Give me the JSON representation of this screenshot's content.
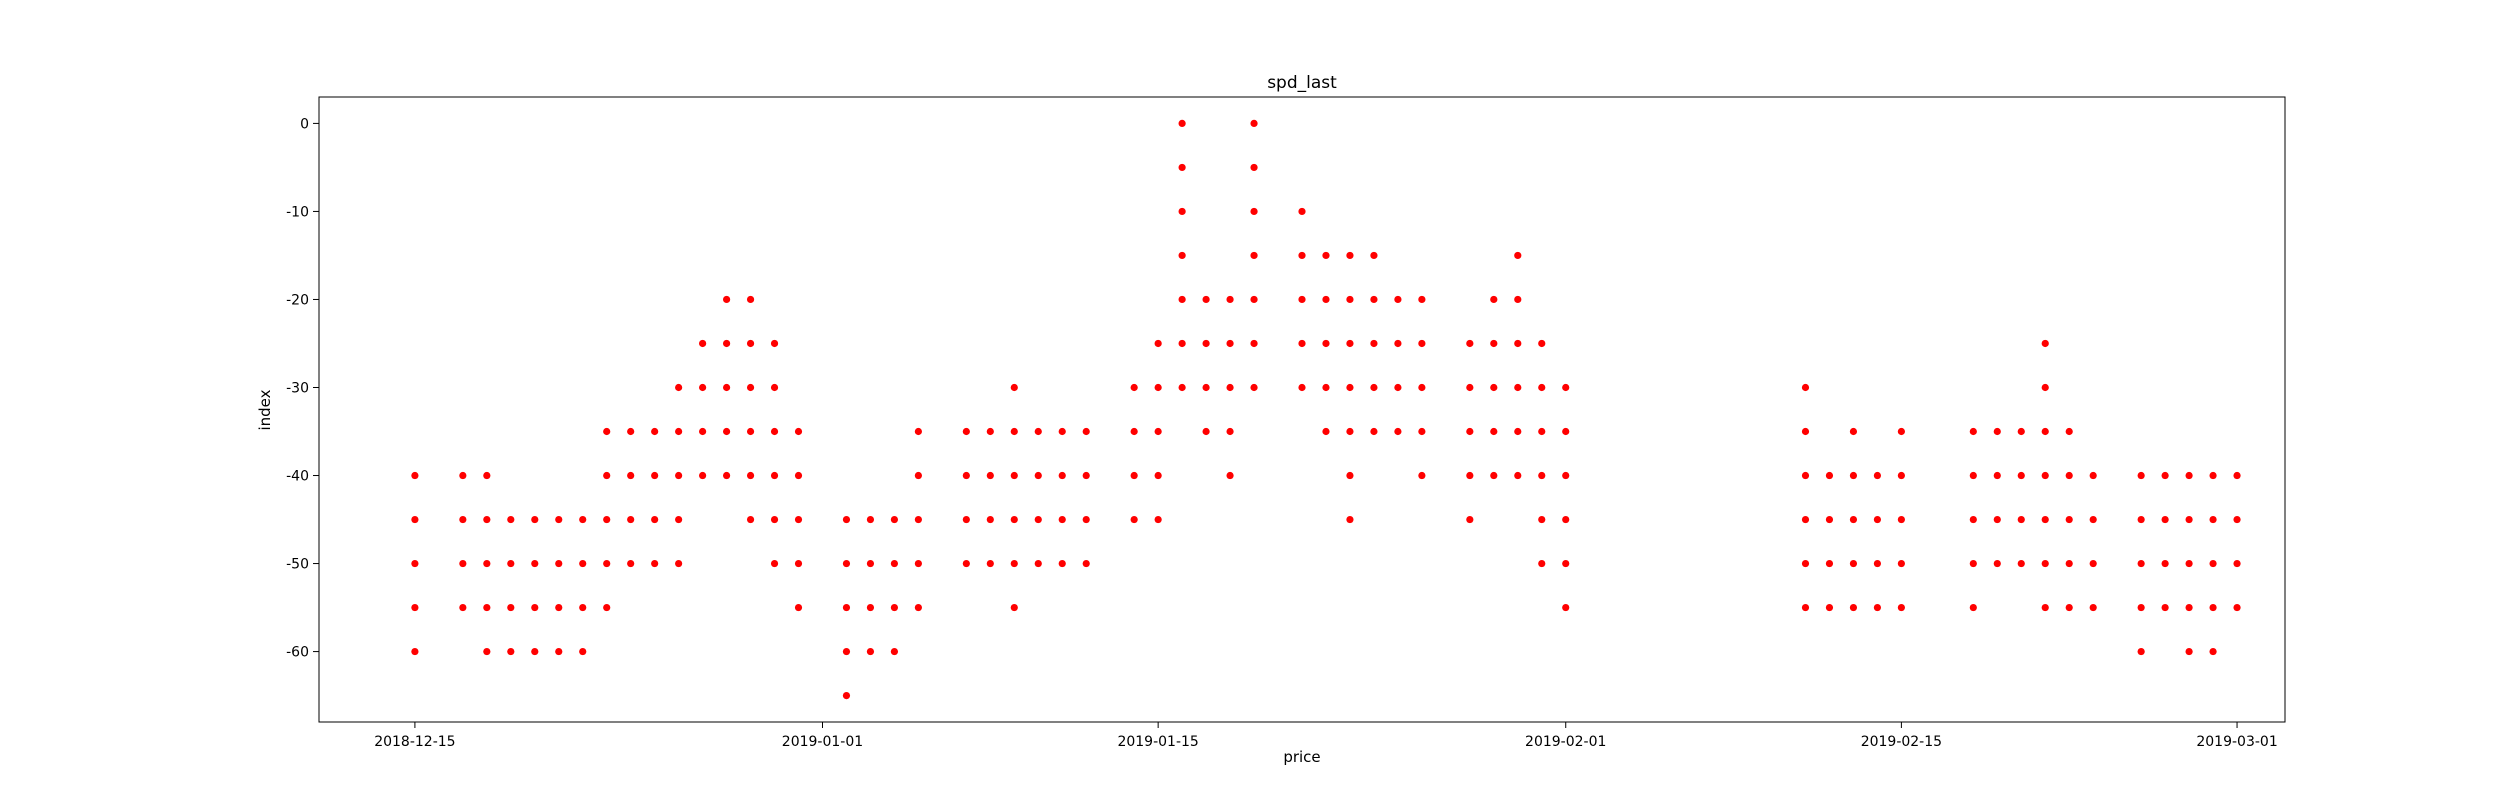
{
  "chart_data": {
    "type": "scatter",
    "title": "spd_last",
    "xlabel": "price",
    "ylabel": "index",
    "x_axis_kind": "date",
    "xlim": [
      "2018-12-11",
      "2019-03-03"
    ],
    "ylim": [
      -68,
      3
    ],
    "xticks": [
      "2018-12-15",
      "2019-01-01",
      "2019-01-15",
      "2019-02-01",
      "2019-02-15",
      "2019-03-01"
    ],
    "yticks": [
      0,
      -10,
      -20,
      -30,
      -40,
      -50,
      -60
    ],
    "marker_color": "#ff0000",
    "grid": false,
    "legend": "none",
    "points": [
      [
        "2018-12-15",
        -40
      ],
      [
        "2018-12-15",
        -45
      ],
      [
        "2018-12-15",
        -50
      ],
      [
        "2018-12-15",
        -55
      ],
      [
        "2018-12-15",
        -60
      ],
      [
        "2018-12-17",
        -40
      ],
      [
        "2018-12-17",
        -45
      ],
      [
        "2018-12-17",
        -50
      ],
      [
        "2018-12-17",
        -55
      ],
      [
        "2018-12-18",
        -40
      ],
      [
        "2018-12-18",
        -45
      ],
      [
        "2018-12-18",
        -50
      ],
      [
        "2018-12-18",
        -55
      ],
      [
        "2018-12-18",
        -60
      ],
      [
        "2018-12-19",
        -45
      ],
      [
        "2018-12-19",
        -50
      ],
      [
        "2018-12-19",
        -55
      ],
      [
        "2018-12-19",
        -60
      ],
      [
        "2018-12-20",
        -45
      ],
      [
        "2018-12-20",
        -50
      ],
      [
        "2018-12-20",
        -55
      ],
      [
        "2018-12-20",
        -60
      ],
      [
        "2018-12-21",
        -45
      ],
      [
        "2018-12-21",
        -50
      ],
      [
        "2018-12-21",
        -55
      ],
      [
        "2018-12-21",
        -60
      ],
      [
        "2018-12-22",
        -45
      ],
      [
        "2018-12-22",
        -50
      ],
      [
        "2018-12-22",
        -55
      ],
      [
        "2018-12-22",
        -60
      ],
      [
        "2018-12-23",
        -35
      ],
      [
        "2018-12-23",
        -40
      ],
      [
        "2018-12-23",
        -45
      ],
      [
        "2018-12-23",
        -50
      ],
      [
        "2018-12-23",
        -55
      ],
      [
        "2018-12-24",
        -35
      ],
      [
        "2018-12-24",
        -40
      ],
      [
        "2018-12-24",
        -45
      ],
      [
        "2018-12-24",
        -50
      ],
      [
        "2018-12-25",
        -35
      ],
      [
        "2018-12-25",
        -40
      ],
      [
        "2018-12-25",
        -45
      ],
      [
        "2018-12-25",
        -50
      ],
      [
        "2018-12-26",
        -30
      ],
      [
        "2018-12-26",
        -35
      ],
      [
        "2018-12-26",
        -40
      ],
      [
        "2018-12-26",
        -45
      ],
      [
        "2018-12-26",
        -50
      ],
      [
        "2018-12-27",
        -25
      ],
      [
        "2018-12-27",
        -30
      ],
      [
        "2018-12-27",
        -35
      ],
      [
        "2018-12-27",
        -40
      ],
      [
        "2018-12-28",
        -20
      ],
      [
        "2018-12-28",
        -25
      ],
      [
        "2018-12-28",
        -30
      ],
      [
        "2018-12-28",
        -35
      ],
      [
        "2018-12-28",
        -40
      ],
      [
        "2018-12-29",
        -20
      ],
      [
        "2018-12-29",
        -25
      ],
      [
        "2018-12-29",
        -30
      ],
      [
        "2018-12-29",
        -35
      ],
      [
        "2018-12-29",
        -40
      ],
      [
        "2018-12-29",
        -45
      ],
      [
        "2018-12-30",
        -25
      ],
      [
        "2018-12-30",
        -30
      ],
      [
        "2018-12-30",
        -35
      ],
      [
        "2018-12-30",
        -40
      ],
      [
        "2018-12-30",
        -45
      ],
      [
        "2018-12-30",
        -50
      ],
      [
        "2018-12-31",
        -35
      ],
      [
        "2018-12-31",
        -40
      ],
      [
        "2018-12-31",
        -45
      ],
      [
        "2018-12-31",
        -50
      ],
      [
        "2018-12-31",
        -55
      ],
      [
        "2019-01-02",
        -45
      ],
      [
        "2019-01-02",
        -50
      ],
      [
        "2019-01-02",
        -55
      ],
      [
        "2019-01-02",
        -60
      ],
      [
        "2019-01-02",
        -65
      ],
      [
        "2019-01-03",
        -45
      ],
      [
        "2019-01-03",
        -50
      ],
      [
        "2019-01-03",
        -55
      ],
      [
        "2019-01-03",
        -60
      ],
      [
        "2019-01-04",
        -45
      ],
      [
        "2019-01-04",
        -50
      ],
      [
        "2019-01-04",
        -55
      ],
      [
        "2019-01-04",
        -60
      ],
      [
        "2019-01-05",
        -35
      ],
      [
        "2019-01-05",
        -40
      ],
      [
        "2019-01-05",
        -45
      ],
      [
        "2019-01-05",
        -50
      ],
      [
        "2019-01-05",
        -55
      ],
      [
        "2019-01-07",
        -35
      ],
      [
        "2019-01-07",
        -40
      ],
      [
        "2019-01-07",
        -45
      ],
      [
        "2019-01-07",
        -50
      ],
      [
        "2019-01-08",
        -35
      ],
      [
        "2019-01-08",
        -40
      ],
      [
        "2019-01-08",
        -45
      ],
      [
        "2019-01-08",
        -50
      ],
      [
        "2019-01-09",
        -30
      ],
      [
        "2019-01-09",
        -35
      ],
      [
        "2019-01-09",
        -40
      ],
      [
        "2019-01-09",
        -45
      ],
      [
        "2019-01-09",
        -50
      ],
      [
        "2019-01-09",
        -55
      ],
      [
        "2019-01-10",
        -35
      ],
      [
        "2019-01-10",
        -40
      ],
      [
        "2019-01-10",
        -45
      ],
      [
        "2019-01-10",
        -50
      ],
      [
        "2019-01-11",
        -35
      ],
      [
        "2019-01-11",
        -40
      ],
      [
        "2019-01-11",
        -45
      ],
      [
        "2019-01-11",
        -50
      ],
      [
        "2019-01-12",
        -35
      ],
      [
        "2019-01-12",
        -40
      ],
      [
        "2019-01-12",
        -45
      ],
      [
        "2019-01-12",
        -50
      ],
      [
        "2019-01-14",
        -30
      ],
      [
        "2019-01-14",
        -35
      ],
      [
        "2019-01-14",
        -40
      ],
      [
        "2019-01-14",
        -45
      ],
      [
        "2019-01-15",
        -25
      ],
      [
        "2019-01-15",
        -30
      ],
      [
        "2019-01-15",
        -35
      ],
      [
        "2019-01-15",
        -40
      ],
      [
        "2019-01-15",
        -45
      ],
      [
        "2019-01-16",
        0
      ],
      [
        "2019-01-16",
        -5
      ],
      [
        "2019-01-16",
        -10
      ],
      [
        "2019-01-16",
        -15
      ],
      [
        "2019-01-16",
        -20
      ],
      [
        "2019-01-16",
        -25
      ],
      [
        "2019-01-16",
        -30
      ],
      [
        "2019-01-17",
        -20
      ],
      [
        "2019-01-17",
        -25
      ],
      [
        "2019-01-17",
        -30
      ],
      [
        "2019-01-17",
        -35
      ],
      [
        "2019-01-18",
        -20
      ],
      [
        "2019-01-18",
        -25
      ],
      [
        "2019-01-18",
        -30
      ],
      [
        "2019-01-18",
        -35
      ],
      [
        "2019-01-18",
        -40
      ],
      [
        "2019-01-19",
        0
      ],
      [
        "2019-01-19",
        -5
      ],
      [
        "2019-01-19",
        -10
      ],
      [
        "2019-01-19",
        -15
      ],
      [
        "2019-01-19",
        -20
      ],
      [
        "2019-01-19",
        -25
      ],
      [
        "2019-01-19",
        -30
      ],
      [
        "2019-01-21",
        -10
      ],
      [
        "2019-01-21",
        -15
      ],
      [
        "2019-01-21",
        -20
      ],
      [
        "2019-01-21",
        -25
      ],
      [
        "2019-01-21",
        -30
      ],
      [
        "2019-01-22",
        -15
      ],
      [
        "2019-01-22",
        -20
      ],
      [
        "2019-01-22",
        -25
      ],
      [
        "2019-01-22",
        -30
      ],
      [
        "2019-01-22",
        -35
      ],
      [
        "2019-01-23",
        -15
      ],
      [
        "2019-01-23",
        -20
      ],
      [
        "2019-01-23",
        -25
      ],
      [
        "2019-01-23",
        -30
      ],
      [
        "2019-01-23",
        -35
      ],
      [
        "2019-01-23",
        -40
      ],
      [
        "2019-01-23",
        -45
      ],
      [
        "2019-01-24",
        -15
      ],
      [
        "2019-01-24",
        -20
      ],
      [
        "2019-01-24",
        -25
      ],
      [
        "2019-01-24",
        -30
      ],
      [
        "2019-01-24",
        -35
      ],
      [
        "2019-01-25",
        -20
      ],
      [
        "2019-01-25",
        -25
      ],
      [
        "2019-01-25",
        -30
      ],
      [
        "2019-01-25",
        -35
      ],
      [
        "2019-01-26",
        -20
      ],
      [
        "2019-01-26",
        -25
      ],
      [
        "2019-01-26",
        -30
      ],
      [
        "2019-01-26",
        -35
      ],
      [
        "2019-01-26",
        -40
      ],
      [
        "2019-01-28",
        -25
      ],
      [
        "2019-01-28",
        -30
      ],
      [
        "2019-01-28",
        -35
      ],
      [
        "2019-01-28",
        -40
      ],
      [
        "2019-01-28",
        -45
      ],
      [
        "2019-01-29",
        -20
      ],
      [
        "2019-01-29",
        -25
      ],
      [
        "2019-01-29",
        -30
      ],
      [
        "2019-01-29",
        -35
      ],
      [
        "2019-01-29",
        -40
      ],
      [
        "2019-01-30",
        -15
      ],
      [
        "2019-01-30",
        -20
      ],
      [
        "2019-01-30",
        -25
      ],
      [
        "2019-01-30",
        -30
      ],
      [
        "2019-01-30",
        -35
      ],
      [
        "2019-01-30",
        -40
      ],
      [
        "2019-01-31",
        -25
      ],
      [
        "2019-01-31",
        -30
      ],
      [
        "2019-01-31",
        -35
      ],
      [
        "2019-01-31",
        -40
      ],
      [
        "2019-01-31",
        -45
      ],
      [
        "2019-01-31",
        -50
      ],
      [
        "2019-02-01",
        -30
      ],
      [
        "2019-02-01",
        -35
      ],
      [
        "2019-02-01",
        -40
      ],
      [
        "2019-02-01",
        -45
      ],
      [
        "2019-02-01",
        -50
      ],
      [
        "2019-02-01",
        -55
      ],
      [
        "2019-02-11",
        -30
      ],
      [
        "2019-02-11",
        -35
      ],
      [
        "2019-02-11",
        -40
      ],
      [
        "2019-02-11",
        -45
      ],
      [
        "2019-02-11",
        -50
      ],
      [
        "2019-02-11",
        -55
      ],
      [
        "2019-02-12",
        -40
      ],
      [
        "2019-02-12",
        -45
      ],
      [
        "2019-02-12",
        -50
      ],
      [
        "2019-02-12",
        -55
      ],
      [
        "2019-02-13",
        -35
      ],
      [
        "2019-02-13",
        -40
      ],
      [
        "2019-02-13",
        -45
      ],
      [
        "2019-02-13",
        -50
      ],
      [
        "2019-02-13",
        -55
      ],
      [
        "2019-02-14",
        -40
      ],
      [
        "2019-02-14",
        -45
      ],
      [
        "2019-02-14",
        -50
      ],
      [
        "2019-02-14",
        -55
      ],
      [
        "2019-02-15",
        -35
      ],
      [
        "2019-02-15",
        -40
      ],
      [
        "2019-02-15",
        -45
      ],
      [
        "2019-02-15",
        -50
      ],
      [
        "2019-02-15",
        -55
      ],
      [
        "2019-02-18",
        -35
      ],
      [
        "2019-02-18",
        -40
      ],
      [
        "2019-02-18",
        -45
      ],
      [
        "2019-02-18",
        -50
      ],
      [
        "2019-02-18",
        -55
      ],
      [
        "2019-02-19",
        -35
      ],
      [
        "2019-02-19",
        -40
      ],
      [
        "2019-02-19",
        -45
      ],
      [
        "2019-02-19",
        -50
      ],
      [
        "2019-02-20",
        -35
      ],
      [
        "2019-02-20",
        -40
      ],
      [
        "2019-02-20",
        -45
      ],
      [
        "2019-02-20",
        -50
      ],
      [
        "2019-02-21",
        -25
      ],
      [
        "2019-02-21",
        -30
      ],
      [
        "2019-02-21",
        -35
      ],
      [
        "2019-02-21",
        -40
      ],
      [
        "2019-02-21",
        -45
      ],
      [
        "2019-02-21",
        -50
      ],
      [
        "2019-02-21",
        -55
      ],
      [
        "2019-02-22",
        -35
      ],
      [
        "2019-02-22",
        -40
      ],
      [
        "2019-02-22",
        -45
      ],
      [
        "2019-02-22",
        -50
      ],
      [
        "2019-02-22",
        -55
      ],
      [
        "2019-02-23",
        -40
      ],
      [
        "2019-02-23",
        -45
      ],
      [
        "2019-02-23",
        -50
      ],
      [
        "2019-02-23",
        -55
      ],
      [
        "2019-02-25",
        -40
      ],
      [
        "2019-02-25",
        -45
      ],
      [
        "2019-02-25",
        -50
      ],
      [
        "2019-02-25",
        -55
      ],
      [
        "2019-02-25",
        -60
      ],
      [
        "2019-02-26",
        -40
      ],
      [
        "2019-02-26",
        -45
      ],
      [
        "2019-02-26",
        -50
      ],
      [
        "2019-02-26",
        -55
      ],
      [
        "2019-02-27",
        -40
      ],
      [
        "2019-02-27",
        -45
      ],
      [
        "2019-02-27",
        -50
      ],
      [
        "2019-02-27",
        -55
      ],
      [
        "2019-02-27",
        -60
      ],
      [
        "2019-02-28",
        -40
      ],
      [
        "2019-02-28",
        -45
      ],
      [
        "2019-02-28",
        -50
      ],
      [
        "2019-02-28",
        -55
      ],
      [
        "2019-02-28",
        -60
      ],
      [
        "2019-03-01",
        -40
      ],
      [
        "2019-03-01",
        -45
      ],
      [
        "2019-03-01",
        -50
      ],
      [
        "2019-03-01",
        -55
      ]
    ]
  }
}
